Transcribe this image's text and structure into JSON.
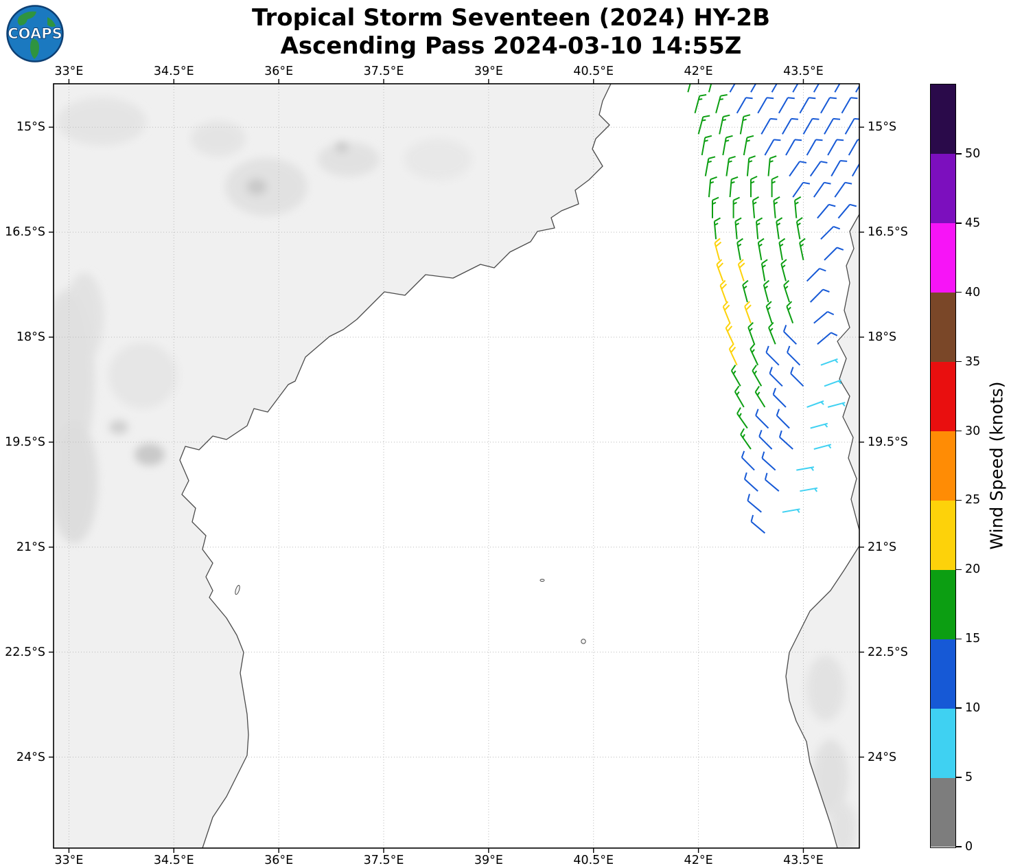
{
  "logo": {
    "text": "COAPS"
  },
  "chart_data": {
    "type": "wind_barb_map",
    "title": "Tropical Storm Seventeen (2024) HY-2B",
    "subtitle": "Ascending Pass 2024-03-10 14:55Z",
    "lon_range": [
      32.78,
      44.3
    ],
    "lat_s_range": [
      14.38,
      25.3
    ],
    "lon_ticks": [
      {
        "v": 33,
        "label": "33°E"
      },
      {
        "v": 34.5,
        "label": "34.5°E"
      },
      {
        "v": 36,
        "label": "36°E"
      },
      {
        "v": 37.5,
        "label": "37.5°E"
      },
      {
        "v": 39,
        "label": "39°E"
      },
      {
        "v": 40.5,
        "label": "40.5°E"
      },
      {
        "v": 42,
        "label": "42°E"
      },
      {
        "v": 43.5,
        "label": "43.5°E"
      }
    ],
    "lat_ticks": [
      {
        "v": 15,
        "label": "15°S"
      },
      {
        "v": 16.5,
        "label": "16.5°S"
      },
      {
        "v": 18,
        "label": "18°S"
      },
      {
        "v": 19.5,
        "label": "19.5°S"
      },
      {
        "v": 21,
        "label": "21°S"
      },
      {
        "v": 22.5,
        "label": "22.5°S"
      },
      {
        "v": 24,
        "label": "24°S"
      }
    ],
    "colorbar": {
      "label": "Wind Speed (knots)",
      "ticks": [
        0,
        5,
        10,
        15,
        20,
        25,
        30,
        35,
        40,
        45,
        50
      ],
      "segments": [
        {
          "from": 0,
          "to": 5,
          "color": "#7d7d7d"
        },
        {
          "from": 5,
          "to": 10,
          "color": "#3fd1f2"
        },
        {
          "from": 10,
          "to": 15,
          "color": "#1659d6"
        },
        {
          "from": 15,
          "to": 20,
          "color": "#0c9e12"
        },
        {
          "from": 20,
          "to": 25,
          "color": "#fdd20a"
        },
        {
          "from": 25,
          "to": 30,
          "color": "#ff8c05"
        },
        {
          "from": 30,
          "to": 35,
          "color": "#e90f0f"
        },
        {
          "from": 35,
          "to": 40,
          "color": "#7a4728"
        },
        {
          "from": 40,
          "to": 45,
          "color": "#f714f7"
        },
        {
          "from": 45,
          "to": 50,
          "color": "#7c0fbe"
        },
        {
          "from": 50,
          "to": 55,
          "color": "#2a0a4a"
        }
      ]
    },
    "barb_format": [
      "lon_e",
      "lat_s",
      "speed_kt",
      "wind_from_deg"
    ],
    "barbs": [
      [
        41.85,
        14.5,
        17,
        15
      ],
      [
        42.15,
        14.5,
        17,
        15
      ],
      [
        42.45,
        14.5,
        12,
        30
      ],
      [
        42.75,
        14.5,
        12,
        30
      ],
      [
        43.05,
        14.5,
        12,
        30
      ],
      [
        43.35,
        14.5,
        12,
        30
      ],
      [
        43.65,
        14.5,
        12,
        30
      ],
      [
        43.95,
        14.5,
        12,
        30
      ],
      [
        44.25,
        14.5,
        12,
        30
      ],
      [
        41.95,
        14.8,
        17,
        15
      ],
      [
        42.25,
        14.8,
        17,
        15
      ],
      [
        42.55,
        14.8,
        12,
        30
      ],
      [
        42.85,
        14.8,
        12,
        30
      ],
      [
        43.15,
        14.8,
        12,
        30
      ],
      [
        43.45,
        14.8,
        12,
        30
      ],
      [
        43.75,
        14.8,
        12,
        30
      ],
      [
        44.05,
        14.8,
        12,
        30
      ],
      [
        42.0,
        15.1,
        17,
        15
      ],
      [
        42.3,
        15.1,
        17,
        12
      ],
      [
        42.6,
        15.1,
        17,
        10
      ],
      [
        42.9,
        15.1,
        12,
        30
      ],
      [
        43.2,
        15.1,
        12,
        30
      ],
      [
        43.5,
        15.1,
        12,
        30
      ],
      [
        43.8,
        15.1,
        12,
        30
      ],
      [
        44.1,
        15.1,
        12,
        30
      ],
      [
        42.05,
        15.4,
        17,
        10
      ],
      [
        42.35,
        15.4,
        17,
        10
      ],
      [
        42.65,
        15.4,
        17,
        10
      ],
      [
        42.95,
        15.4,
        12,
        30
      ],
      [
        43.25,
        15.4,
        12,
        30
      ],
      [
        43.55,
        15.4,
        12,
        30
      ],
      [
        43.85,
        15.4,
        12,
        30
      ],
      [
        44.15,
        15.4,
        12,
        30
      ],
      [
        42.1,
        15.7,
        17,
        10
      ],
      [
        42.4,
        15.7,
        17,
        8
      ],
      [
        42.7,
        15.7,
        17,
        5
      ],
      [
        43.0,
        15.7,
        17,
        5
      ],
      [
        43.3,
        15.7,
        12,
        35
      ],
      [
        43.6,
        15.7,
        12,
        35
      ],
      [
        43.9,
        15.7,
        12,
        30
      ],
      [
        44.2,
        15.7,
        12,
        30
      ],
      [
        42.15,
        16.0,
        17,
        5
      ],
      [
        42.45,
        16.0,
        17,
        5
      ],
      [
        42.75,
        16.0,
        17,
        0
      ],
      [
        43.05,
        16.0,
        17,
        0
      ],
      [
        43.35,
        16.0,
        12,
        35
      ],
      [
        43.65,
        16.0,
        12,
        35
      ],
      [
        43.95,
        16.0,
        12,
        35
      ],
      [
        42.2,
        16.3,
        17,
        0
      ],
      [
        42.5,
        16.3,
        17,
        0
      ],
      [
        42.8,
        16.3,
        17,
        355
      ],
      [
        43.1,
        16.3,
        17,
        355
      ],
      [
        43.4,
        16.3,
        17,
        355
      ],
      [
        43.7,
        16.3,
        12,
        40
      ],
      [
        44.0,
        16.3,
        12,
        40
      ],
      [
        42.25,
        16.6,
        17,
        355
      ],
      [
        42.55,
        16.6,
        17,
        355
      ],
      [
        42.85,
        16.6,
        17,
        355
      ],
      [
        43.15,
        16.6,
        17,
        352
      ],
      [
        43.45,
        16.6,
        17,
        350
      ],
      [
        43.75,
        16.6,
        12,
        45
      ],
      [
        42.3,
        16.9,
        22,
        345
      ],
      [
        42.6,
        16.9,
        17,
        350
      ],
      [
        42.9,
        16.9,
        17,
        350
      ],
      [
        43.2,
        16.9,
        17,
        350
      ],
      [
        43.5,
        16.9,
        17,
        348
      ],
      [
        43.8,
        16.9,
        12,
        45
      ],
      [
        42.35,
        17.2,
        22,
        340
      ],
      [
        42.65,
        17.2,
        22,
        342
      ],
      [
        42.95,
        17.2,
        17,
        350
      ],
      [
        43.25,
        17.2,
        17,
        345
      ],
      [
        43.55,
        17.2,
        12,
        45
      ],
      [
        42.4,
        17.5,
        22,
        340
      ],
      [
        42.7,
        17.5,
        17,
        345
      ],
      [
        43.0,
        17.5,
        17,
        345
      ],
      [
        43.3,
        17.5,
        17,
        342
      ],
      [
        43.6,
        17.5,
        12,
        45
      ],
      [
        42.45,
        17.8,
        22,
        338
      ],
      [
        42.75,
        17.8,
        22,
        340
      ],
      [
        43.05,
        17.8,
        17,
        342
      ],
      [
        43.35,
        17.8,
        17,
        340
      ],
      [
        43.65,
        17.8,
        12,
        50
      ],
      [
        42.5,
        18.1,
        22,
        335
      ],
      [
        42.8,
        18.1,
        17,
        340
      ],
      [
        43.1,
        18.1,
        17,
        338
      ],
      [
        43.4,
        18.1,
        12,
        315
      ],
      [
        43.7,
        18.1,
        12,
        50
      ],
      [
        42.55,
        18.4,
        22,
        335
      ],
      [
        42.85,
        18.4,
        17,
        335
      ],
      [
        43.15,
        18.4,
        12,
        315
      ],
      [
        43.45,
        18.4,
        12,
        315
      ],
      [
        43.75,
        18.4,
        7,
        70
      ],
      [
        42.6,
        18.7,
        17,
        330
      ],
      [
        42.9,
        18.7,
        17,
        330
      ],
      [
        43.2,
        18.7,
        12,
        315
      ],
      [
        43.5,
        18.7,
        12,
        315
      ],
      [
        43.8,
        18.7,
        7,
        70
      ],
      [
        42.65,
        19.0,
        17,
        330
      ],
      [
        42.95,
        19.0,
        17,
        328
      ],
      [
        43.25,
        19.0,
        12,
        315
      ],
      [
        43.55,
        19.0,
        7,
        70
      ],
      [
        43.85,
        19.0,
        7,
        75
      ],
      [
        42.7,
        19.3,
        17,
        325
      ],
      [
        43.0,
        19.3,
        12,
        315
      ],
      [
        43.3,
        19.3,
        12,
        315
      ],
      [
        43.6,
        19.3,
        7,
        75
      ],
      [
        42.75,
        19.6,
        17,
        325
      ],
      [
        43.05,
        19.6,
        12,
        315
      ],
      [
        43.35,
        19.6,
        12,
        312
      ],
      [
        43.65,
        19.6,
        7,
        75
      ],
      [
        42.8,
        19.9,
        12,
        315
      ],
      [
        43.1,
        19.9,
        12,
        312
      ],
      [
        43.4,
        19.9,
        7,
        80
      ],
      [
        42.85,
        20.2,
        12,
        312
      ],
      [
        43.15,
        20.2,
        12,
        310
      ],
      [
        43.45,
        20.2,
        7,
        80
      ],
      [
        42.9,
        20.5,
        12,
        310
      ],
      [
        43.2,
        20.5,
        7,
        80
      ],
      [
        42.95,
        20.8,
        12,
        310
      ]
    ]
  }
}
